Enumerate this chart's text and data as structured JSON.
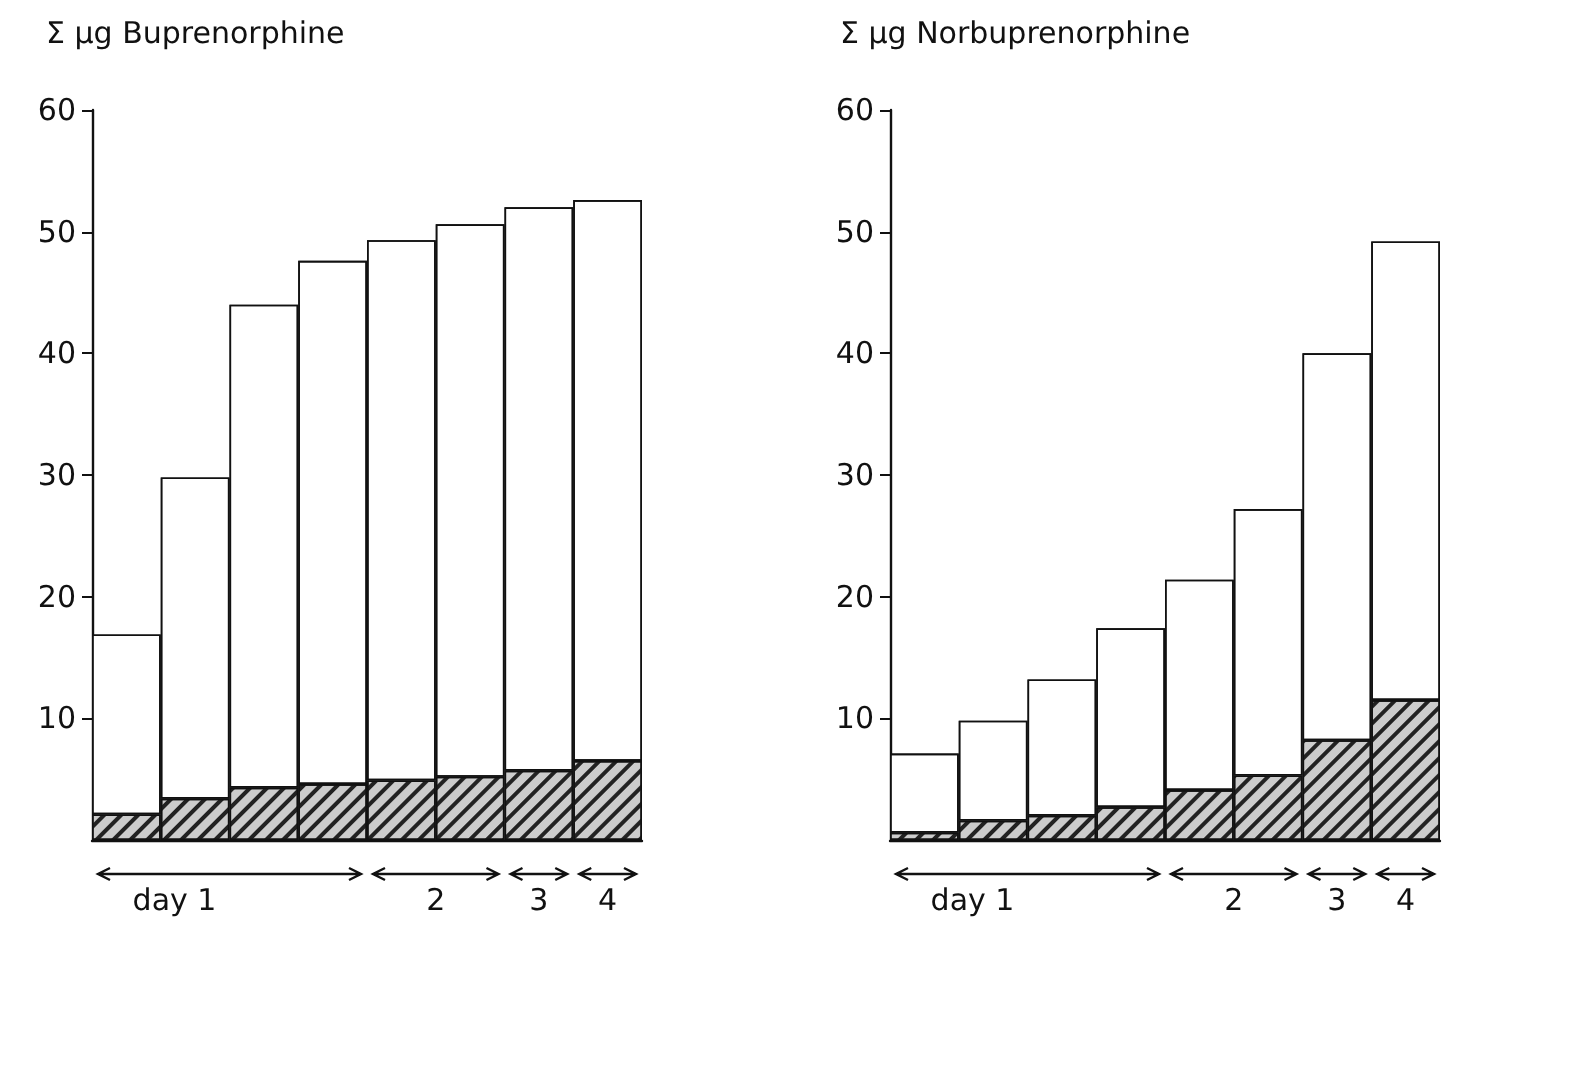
{
  "chart_data": [
    {
      "type": "bar",
      "title": "Σ µg Buprenorphine",
      "categories": [
        null,
        null,
        null,
        null,
        null,
        null,
        null,
        null
      ],
      "stacked": true,
      "series": [
        {
          "color": "#cccccc",
          "values": [
            2.1,
            3.4,
            4.3,
            4.6,
            4.9,
            5.2,
            5.7,
            6.5
          ]
        },
        {
          "color": "#ffffff",
          "values": [
            14.8,
            26.4,
            39.7,
            43.0,
            44.4,
            45.4,
            46.3,
            46.1
          ]
        }
      ],
      "ylim": [
        0,
        60
      ],
      "yticks": [
        10,
        20,
        30,
        40,
        50,
        60
      ],
      "grid": false,
      "tick_labels": "y",
      "annotations": [
        "day 1",
        "2",
        "3",
        "4"
      ]
    },
    {
      "type": "bar",
      "title": "Σ µg Norbuprenorphine",
      "categories": [
        null,
        null,
        null,
        null,
        null,
        null,
        null,
        null
      ],
      "stacked": true,
      "series": [
        {
          "color": "#cccccc",
          "values": [
            0.6,
            1.6,
            2.0,
            2.7,
            4.1,
            5.3,
            8.2,
            11.5
          ]
        },
        {
          "color": "#ffffff",
          "values": [
            6.5,
            8.2,
            11.2,
            14.7,
            17.3,
            21.9,
            31.8,
            37.7
          ]
        }
      ],
      "ylim": [
        0,
        60
      ],
      "yticks": [
        10,
        20,
        30,
        40,
        50,
        60
      ],
      "grid": false,
      "tick_labels": "y",
      "annotations": [
        "day 1",
        "2",
        "3",
        "4"
      ]
    }
  ]
}
